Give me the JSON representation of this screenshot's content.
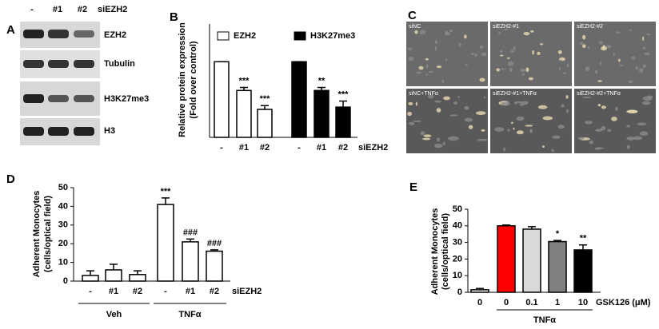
{
  "blot": {
    "panel": "A",
    "lanes": [
      "-",
      "#1",
      "#2"
    ],
    "condition": "siEZH2",
    "rows": [
      "EZH2",
      "Tubulin",
      "H3K27me3",
      "H3"
    ]
  },
  "micrographs": {
    "panel": "C",
    "labels": [
      "siNC",
      "siEZH2-#1",
      "siEZH2-#2",
      "siNC+TNFα",
      "siEZH2-#1+TNFα",
      "siEZH2-#2+TNFα"
    ]
  },
  "chart_data": [
    {
      "panel": "B",
      "type": "bar",
      "ylabel": [
        "Relative protein expression",
        "(Fold over control)"
      ],
      "categories": [
        "-",
        "#1",
        "#2"
      ],
      "xlabel": "siEZH2",
      "ylim": [
        0,
        1.5
      ],
      "series": [
        {
          "name": "EZH2",
          "color": "#ffffff",
          "values": [
            1,
            0.62,
            0.37
          ],
          "errors": [
            0,
            0.04,
            0.05
          ],
          "annotations": [
            null,
            "***",
            "***"
          ]
        },
        {
          "name": "H3K27me3",
          "color": "#000000",
          "values": [
            1,
            0.62,
            0.4
          ],
          "errors": [
            0,
            0.04,
            0.08
          ],
          "annotations": [
            null,
            "**",
            "***"
          ]
        }
      ]
    },
    {
      "panel": "D",
      "type": "bar",
      "ylabel": [
        "Adherent Monocytes",
        "(cells/optical field)"
      ],
      "categories": [
        "-",
        "#1",
        "#2",
        "-",
        "#1",
        "#2"
      ],
      "groups": [
        "Veh",
        "TNFα"
      ],
      "xlabel": "siEZH2",
      "ylim": [
        0,
        50
      ],
      "yticks": [
        0,
        10,
        20,
        30,
        40,
        50
      ],
      "series": [
        {
          "color": "#ffffff",
          "values": [
            3,
            6,
            3.5,
            41,
            21,
            16
          ],
          "errors": [
            2.5,
            3,
            2,
            3.5,
            1.5,
            0.7
          ],
          "annotations": [
            null,
            null,
            null,
            "***",
            "###",
            "###"
          ]
        }
      ]
    },
    {
      "panel": "E",
      "type": "bar",
      "ylabel": [
        "Adherent Monocytes",
        "(cells/optical field)"
      ],
      "categories": [
        "0",
        "0",
        "0.1",
        "1",
        "10"
      ],
      "xlabel": "GSK126 (μM)",
      "bracket": {
        "label": "TNFα",
        "categories": [
          1,
          4
        ]
      },
      "ylim": [
        0,
        50
      ],
      "yticks": [
        0,
        10,
        20,
        30,
        40,
        50
      ],
      "series": [
        {
          "colors": [
            "#ffffff",
            "#ff0000",
            "#d9d9d9",
            "#808080",
            "#000000"
          ],
          "values": [
            1.5,
            40,
            38,
            30.5,
            25.5
          ],
          "errors": [
            0.8,
            0.5,
            1.5,
            0.7,
            3
          ],
          "annotations": [
            null,
            null,
            null,
            "*",
            "**"
          ]
        }
      ]
    }
  ]
}
